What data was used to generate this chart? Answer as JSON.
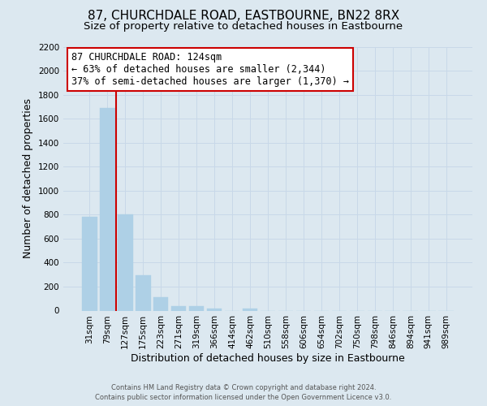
{
  "title": "87, CHURCHDALE ROAD, EASTBOURNE, BN22 8RX",
  "subtitle": "Size of property relative to detached houses in Eastbourne",
  "xlabel": "Distribution of detached houses by size in Eastbourne",
  "ylabel": "Number of detached properties",
  "footer_line1": "Contains HM Land Registry data © Crown copyright and database right 2024.",
  "footer_line2": "Contains public sector information licensed under the Open Government Licence v3.0.",
  "categories": [
    "31sqm",
    "79sqm",
    "127sqm",
    "175sqm",
    "223sqm",
    "271sqm",
    "319sqm",
    "366sqm",
    "414sqm",
    "462sqm",
    "510sqm",
    "558sqm",
    "606sqm",
    "654sqm",
    "702sqm",
    "750sqm",
    "798sqm",
    "846sqm",
    "894sqm",
    "941sqm",
    "989sqm"
  ],
  "bar_values": [
    780,
    1690,
    800,
    295,
    115,
    35,
    35,
    20,
    0,
    20,
    0,
    0,
    0,
    0,
    0,
    0,
    0,
    0,
    0,
    0,
    0
  ],
  "bar_color": "#aed0e6",
  "bar_edge_color": "#aed0e6",
  "vline_color": "#cc0000",
  "ylim": [
    0,
    2200
  ],
  "yticks": [
    0,
    200,
    400,
    600,
    800,
    1000,
    1200,
    1400,
    1600,
    1800,
    2000,
    2200
  ],
  "annotation_text_line1": "87 CHURCHDALE ROAD: 124sqm",
  "annotation_text_line2": "← 63% of detached houses are smaller (2,344)",
  "annotation_text_line3": "37% of semi-detached houses are larger (1,370) →",
  "annotation_box_color": "#ffffff",
  "annotation_box_edge": "#cc0000",
  "grid_color": "#c8d8e8",
  "background_color": "#dce8f0",
  "plot_background": "#dce8f0",
  "title_fontsize": 11,
  "subtitle_fontsize": 9.5,
  "axis_label_fontsize": 9,
  "tick_fontsize": 7.5,
  "annotation_fontsize": 8.5
}
